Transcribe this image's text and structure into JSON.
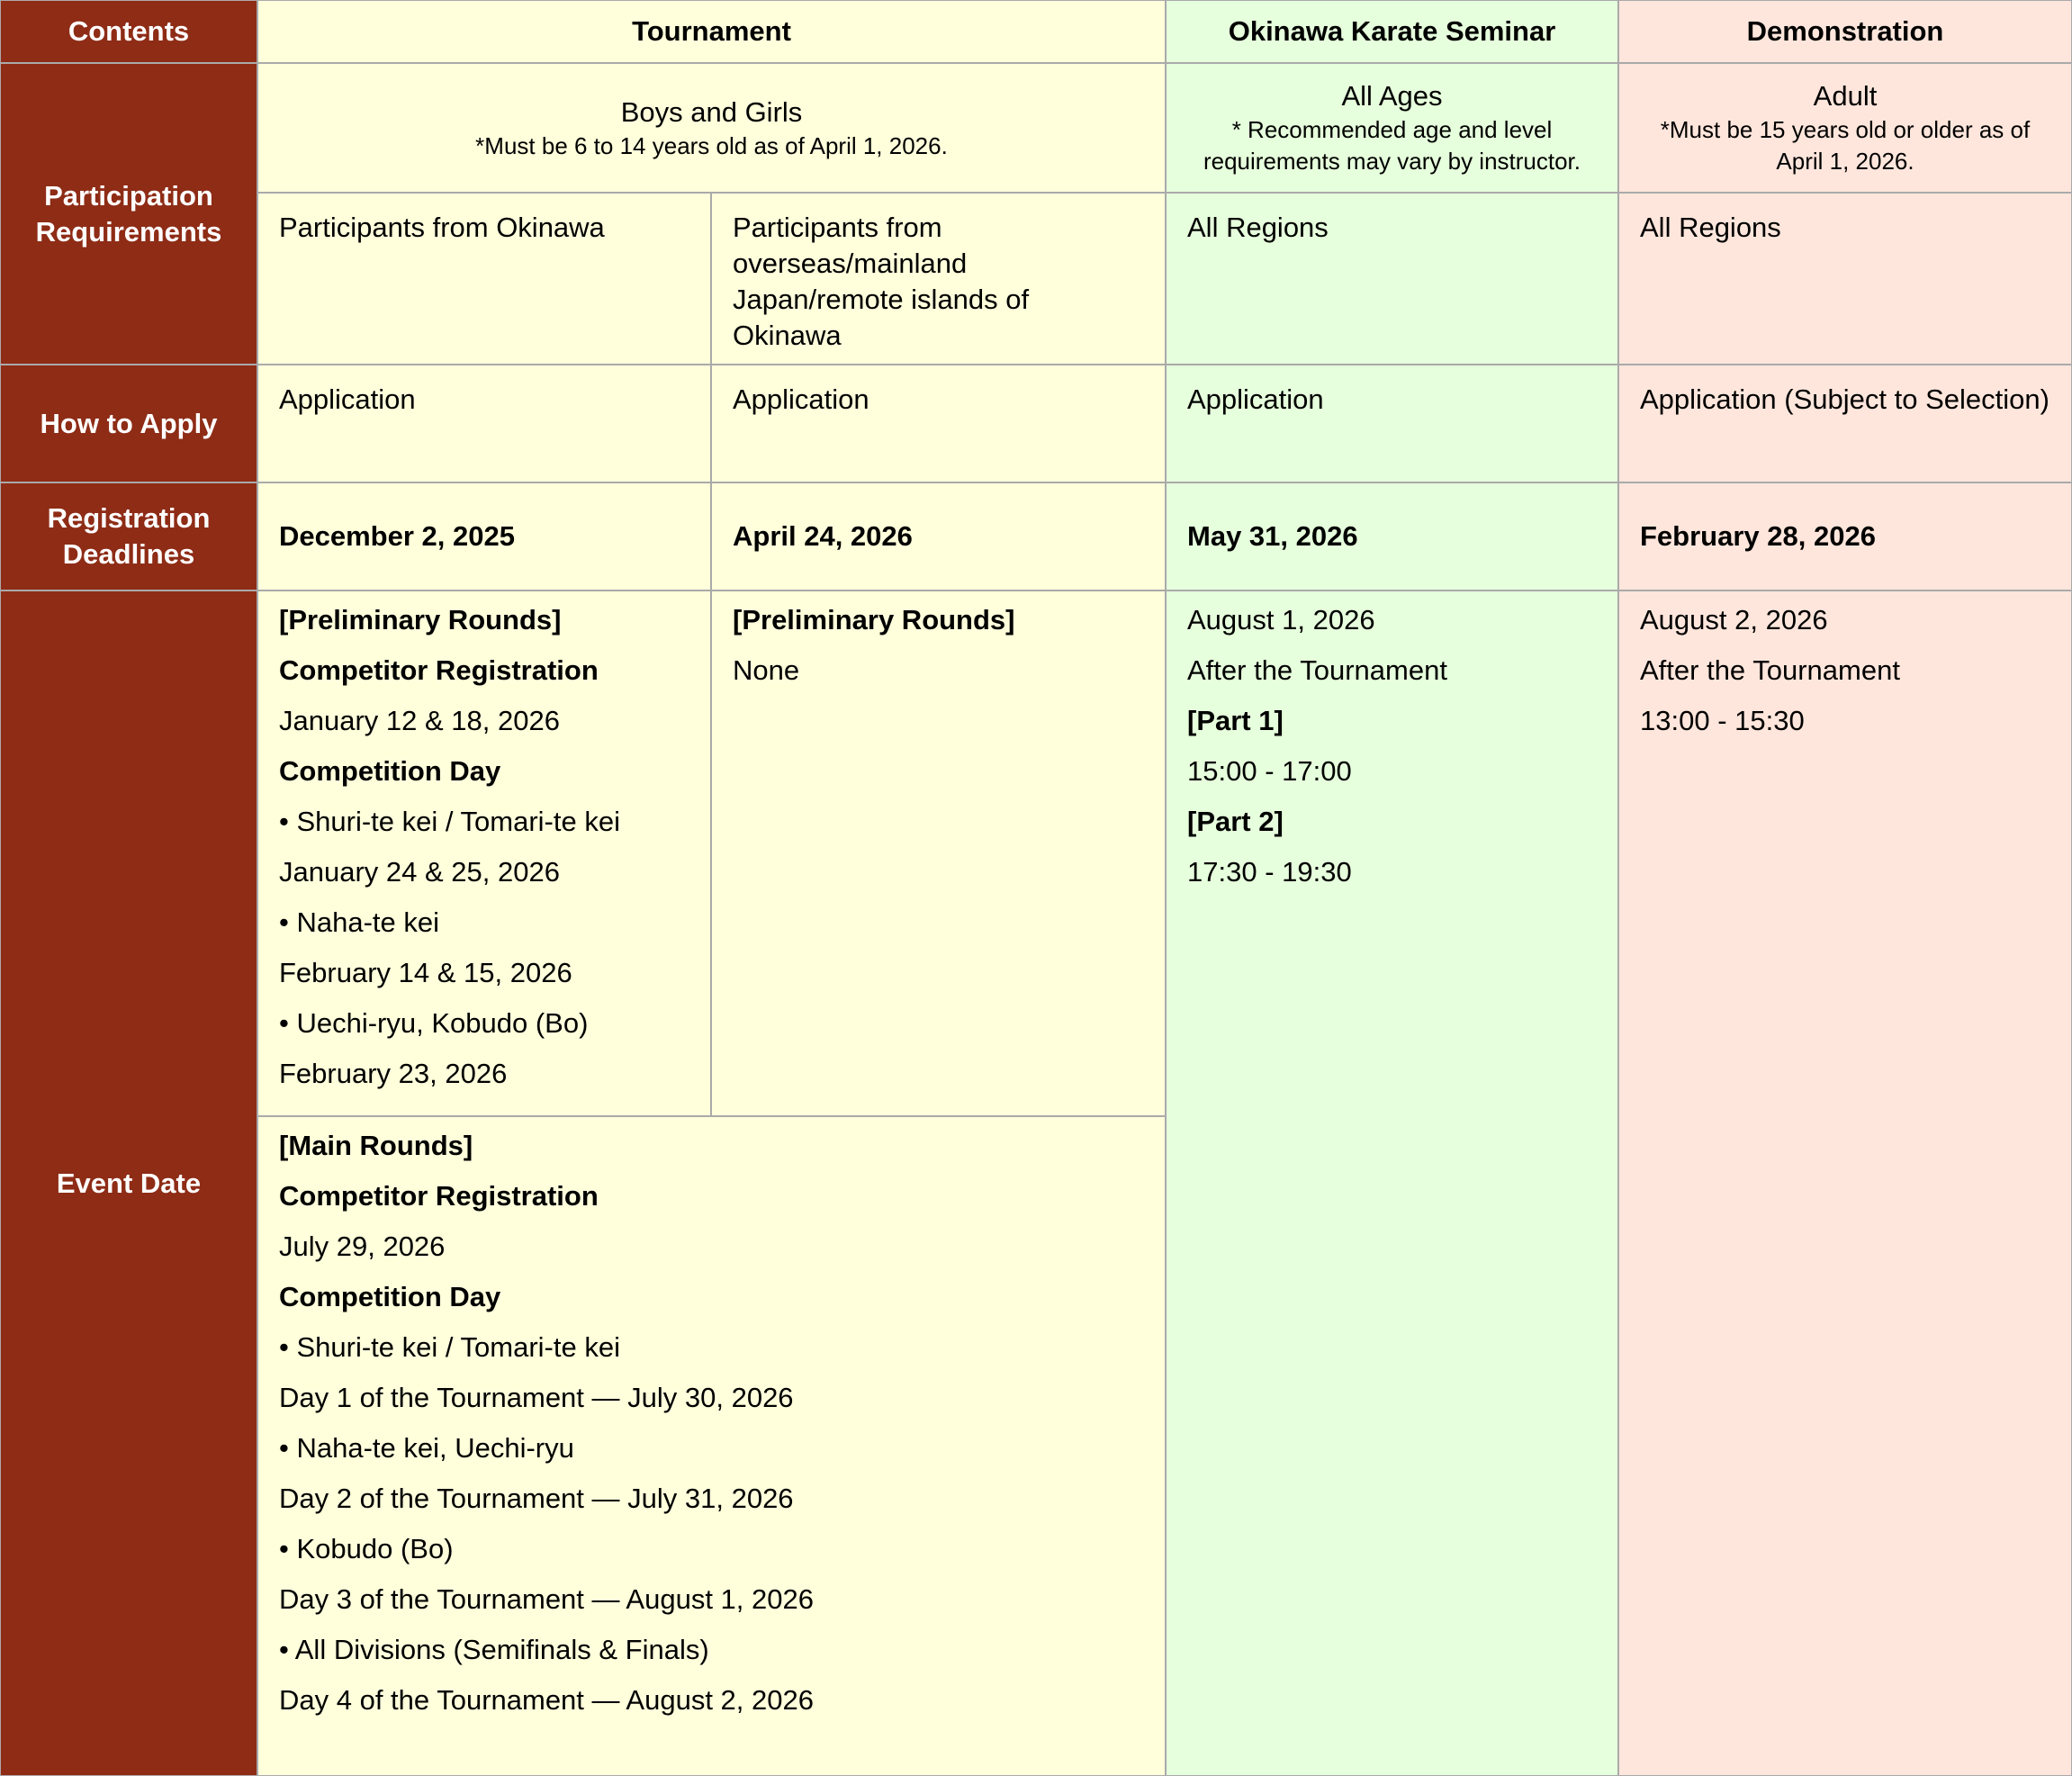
{
  "header": {
    "contents": "Contents",
    "tournament": "Tournament",
    "seminar": "Okinawa Karate Seminar",
    "demonstration": "Demonstration"
  },
  "row_labels": {
    "participation": "Participation Requirements",
    "how_to_apply": "How to Apply",
    "deadlines": "Registration Deadlines",
    "event_date": "Event Date"
  },
  "participation": {
    "tournament": {
      "title": "Boys and Girls",
      "note": "*Must be 6 to 14 years old as of April 1, 2026."
    },
    "seminar": {
      "title": "All Ages",
      "note": "* Recommended age and level requirements may vary by instructor."
    },
    "demonstration": {
      "title": "Adult",
      "note": "*Must be 15 years old or older as of April 1, 2026."
    },
    "regions": [
      "Participants from Okinawa",
      "Participants from overseas/mainland Japan/remote islands of Okinawa",
      "All Regions",
      "All Regions"
    ]
  },
  "how_to_apply": [
    "Application",
    "Application",
    "Application",
    "Application (Subject to Selection)"
  ],
  "deadlines": [
    "December 2, 2025",
    "April 24, 2026",
    "May 31, 2026",
    "February 28, 2026"
  ],
  "event_date": {
    "preliminary_okinawa": [
      {
        "text": "[Preliminary Rounds]",
        "bold": true
      },
      {
        "text": "Competitor Registration",
        "bold": true
      },
      "January 12 & 18, 2026",
      {
        "text": "Competition Day",
        "bold": true
      },
      "• Shuri-te kei / Tomari-te kei",
      "January 24 & 25, 2026",
      "• Naha-te kei",
      "February 14 & 15, 2026",
      "• Uechi-ryu, Kobudo (Bo)",
      "February 23, 2026"
    ],
    "preliminary_overseas": [
      {
        "text": "[Preliminary Rounds]",
        "bold": true
      },
      "None"
    ],
    "main_rounds": [
      {
        "text": "[Main Rounds]",
        "bold": true
      },
      {
        "text": "Competitor Registration",
        "bold": true
      },
      "July 29, 2026",
      {
        "text": "Competition Day",
        "bold": true
      },
      "• Shuri-te kei / Tomari-te kei",
      "Day 1 of the Tournament — July 30, 2026",
      "• Naha-te kei, Uechi-ryu",
      "Day 2 of the Tournament — July 31, 2026",
      "• Kobudo (Bo)",
      "Day 3 of the Tournament — August 1, 2026",
      "• All Divisions (Semifinals & Finals)",
      "Day 4 of the Tournament — August 2, 2026"
    ],
    "seminar": [
      "August 1, 2026",
      "After the Tournament",
      {
        "text": "[Part 1]",
        "bold": true
      },
      "15:00 - 17:00",
      {
        "text": "[Part 2]",
        "bold": true
      },
      "17:30 - 19:30"
    ],
    "demonstration": [
      "August 2, 2026",
      "After the Tournament",
      "13:00 - 15:30"
    ]
  }
}
